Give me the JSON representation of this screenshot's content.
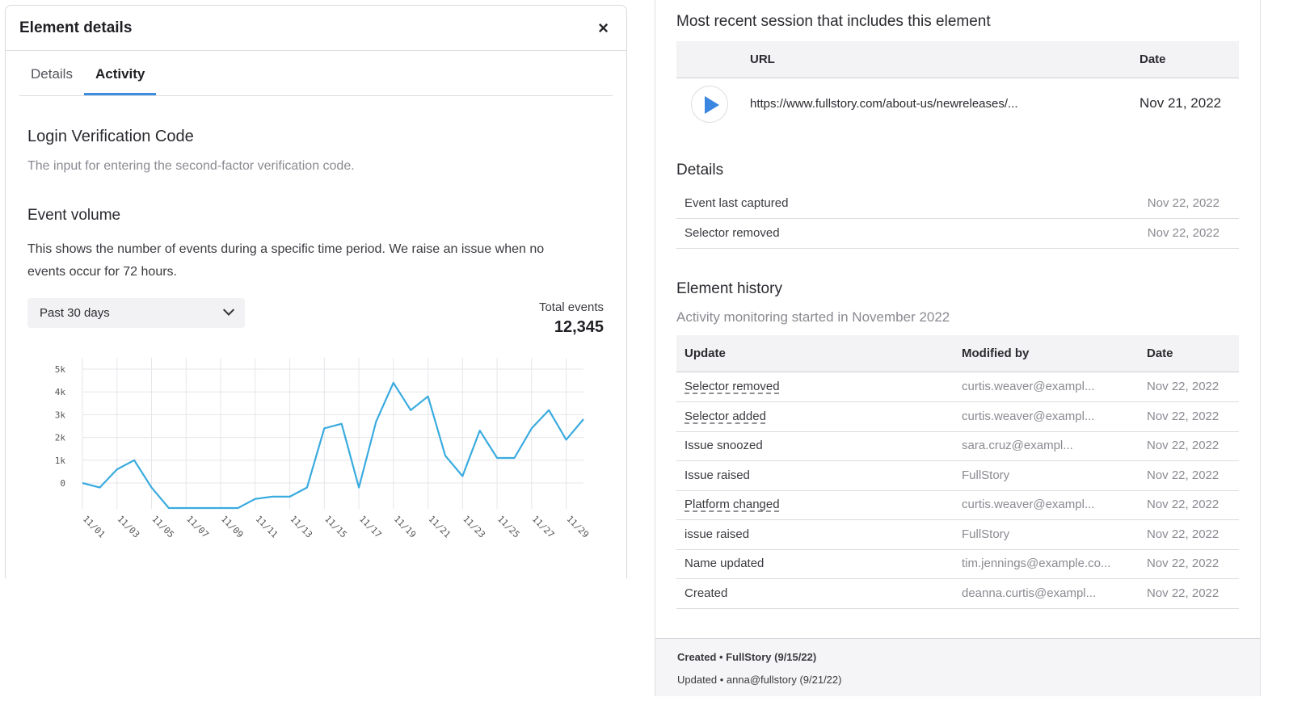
{
  "left": {
    "title": "Element details",
    "close_symbol": "×",
    "tabs": [
      {
        "label": "Details"
      },
      {
        "label": "Activity"
      }
    ],
    "active_tab": "Activity",
    "element_name": "Login Verification Code",
    "element_description": "The input for entering the second-factor verification code.",
    "event_volume_title": "Event volume",
    "event_volume_description": "This shows the number of events during a specific time period. We raise an issue when no events occur for 72 hours.",
    "period_select": "Past 30 days",
    "total_events_label": "Total events",
    "total_events_value": "12,345"
  },
  "chart_data": {
    "type": "line",
    "title": "",
    "xlabel": "",
    "ylabel": "",
    "y_ticks": [
      "5k",
      "4k",
      "3k",
      "2k",
      "1k",
      "0"
    ],
    "y_tick_values": [
      5000,
      4000,
      3000,
      2000,
      1000,
      0
    ],
    "ylim": [
      -1100,
      5500
    ],
    "x_tick_labels": [
      "11/01",
      "11/03",
      "11/05",
      "11/07",
      "11/09",
      "11/11",
      "11/13",
      "11/15",
      "11/17",
      "11/19",
      "11/21",
      "11/23",
      "11/25",
      "11/27",
      "11/29"
    ],
    "x": [
      "11/01",
      "11/02",
      "11/03",
      "11/04",
      "11/05",
      "11/06",
      "11/07",
      "11/08",
      "11/09",
      "11/10",
      "11/11",
      "11/12",
      "11/13",
      "11/14",
      "11/15",
      "11/16",
      "11/17",
      "11/18",
      "11/19",
      "11/20",
      "11/21",
      "11/22",
      "11/23",
      "11/24",
      "11/25",
      "11/26",
      "11/27",
      "11/28",
      "11/29",
      "11/30"
    ],
    "series": [
      {
        "values": [
          0,
          -200,
          600,
          1000,
          -200,
          -1100,
          -1100,
          -1100,
          -1100,
          -1100,
          -700,
          -600,
          -600,
          -200,
          2400,
          2600,
          -200,
          2700,
          4400,
          3200,
          3800,
          1200,
          300,
          2300,
          1100,
          1100,
          2400,
          3200,
          1900,
          2800
        ]
      }
    ],
    "line_color": "#3aabdf",
    "grid": true
  },
  "right": {
    "session_title": "Most recent session that includes this element",
    "session_headers": {
      "url": "URL",
      "date": "Date"
    },
    "session": {
      "url": "https://www.fullstory.com/about-us/newreleases/...",
      "date": "Nov 21, 2022"
    },
    "details_title": "Details",
    "details": [
      {
        "label": "Event last captured",
        "value": "Nov 22, 2022"
      },
      {
        "label": "Selector removed",
        "value": "Nov 22, 2022"
      }
    ],
    "history_title": "Element history",
    "history_subtitle": "Activity monitoring started in November 2022",
    "history_headers": {
      "update": "Update",
      "modified_by": "Modified by",
      "date": "Date"
    },
    "history": [
      {
        "update": "Selector removed",
        "modified_by": "curtis.weaver@exampl...",
        "date": "Nov 22, 2022",
        "link": true
      },
      {
        "update": "Selector added",
        "modified_by": "curtis.weaver@exampl...",
        "date": "Nov 22, 2022",
        "link": true
      },
      {
        "update": "Issue snoozed",
        "modified_by": "sara.cruz@exampl...",
        "date": "Nov 22, 2022",
        "link": false
      },
      {
        "update": "Issue raised",
        "modified_by": "FullStory",
        "date": "Nov 22, 2022",
        "link": false
      },
      {
        "update": "Platform changed",
        "modified_by": "curtis.weaver@exampl...",
        "date": "Nov 22, 2022",
        "link": true
      },
      {
        "update": "issue raised",
        "modified_by": "FullStory",
        "date": "Nov 22, 2022",
        "link": false
      },
      {
        "update": "Name updated",
        "modified_by": "tim.jennings@example.co...",
        "date": "Nov 22, 2022",
        "link": false
      },
      {
        "update": "Created",
        "modified_by": "deanna.curtis@exampl...",
        "date": "Nov 22, 2022",
        "link": false
      }
    ],
    "footer_created": "Created • FullStory (9/15/22)",
    "footer_updated": "Updated • anna@fullstory (9/21/22)"
  }
}
